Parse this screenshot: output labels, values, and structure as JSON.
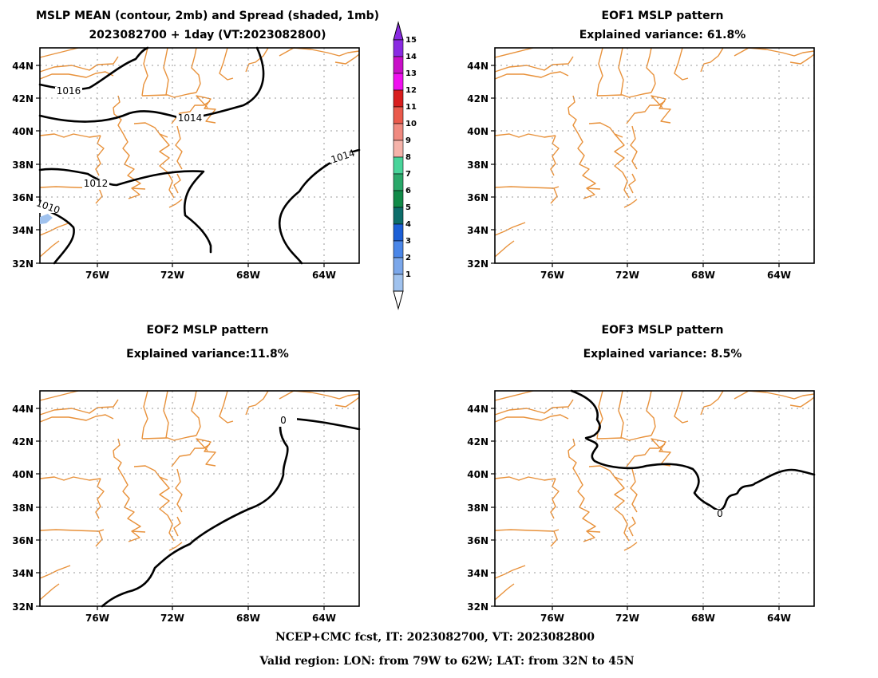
{
  "colors": {
    "coast": "#e8913a",
    "grid": "#9a9a9a",
    "contour": "#000000",
    "spread1": "#a0c2ee"
  },
  "panels": [
    {
      "id": "mean",
      "title1": "MSLP MEAN (contour, 2mb) and Spread (shaded, 1mb)",
      "title2": "2023082700 + 1day (VT:2023082800)",
      "contour_labels": [
        "1016",
        "1014",
        "1014",
        "1012",
        "1010"
      ]
    },
    {
      "id": "eof1",
      "title1": "EOF1 MSLP pattern",
      "title2": "Explained variance: 61.8%",
      "contour_labels": []
    },
    {
      "id": "eof2",
      "title1": "EOF2 MSLP pattern",
      "title2": "Explained variance:11.8%",
      "contour_labels": [
        "0"
      ]
    },
    {
      "id": "eof3",
      "title1": "EOF3 MSLP pattern",
      "title2": "Explained variance: 8.5%",
      "contour_labels": [
        "0"
      ]
    }
  ],
  "map_axes": {
    "lat_ticks": [
      "44N",
      "42N",
      "40N",
      "38N",
      "36N",
      "34N",
      "32N"
    ],
    "lon_ticks": [
      "76W",
      "72W",
      "68W",
      "64W"
    ]
  },
  "colorbar": {
    "labels": [
      "15",
      "14",
      "13",
      "12",
      "11",
      "10",
      "9",
      "8",
      "7",
      "6",
      "5",
      "4",
      "3",
      "2",
      "1"
    ],
    "colors": [
      "#a0c2ee",
      "#7ba7ea",
      "#4a86e8",
      "#1c5fd6",
      "#0d6d6a",
      "#118a48",
      "#2aa86a",
      "#49d49a",
      "#f5b3aa",
      "#f08a80",
      "#ea5a4c",
      "#d81e1e",
      "#f010f0",
      "#c810c8",
      "#8a2be2"
    ]
  },
  "footer": {
    "line1": "NCEP+CMC fcst, IT: 2023082700, VT: 2023082800",
    "line2": "Valid region: LON: from 79W to 62W; LAT: from 32N to 45N"
  }
}
